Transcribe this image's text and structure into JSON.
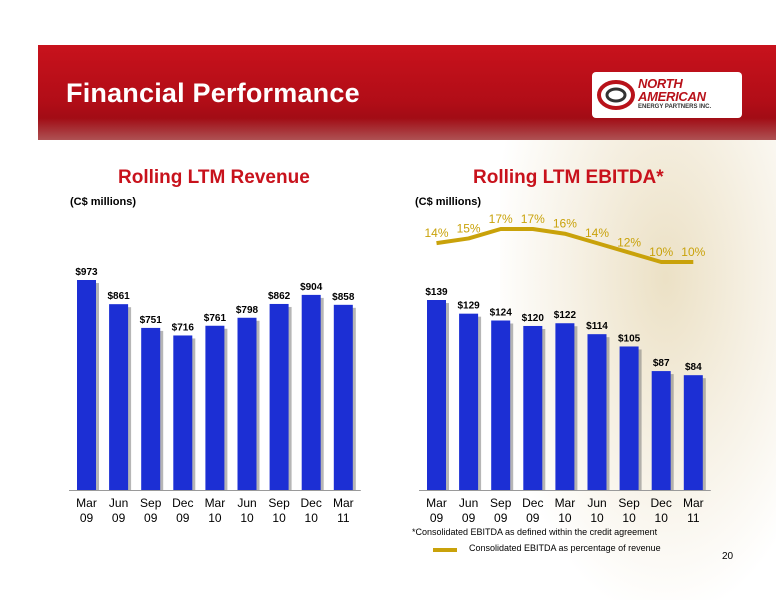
{
  "header": {
    "title": "Financial Performance",
    "logo": {
      "line1": "NORTH",
      "line2": "AMERICAN",
      "line3": "ENERGY PARTNERS INC."
    }
  },
  "colors": {
    "header_red": "#c8121c",
    "bar_blue": "#1c2fd4",
    "line_gold": "#c9a20a"
  },
  "chart_data": [
    {
      "type": "bar",
      "title": "Rolling LTM Revenue",
      "ylabel": "(C$ millions)",
      "categories": [
        "Mar\n09",
        "Jun\n09",
        "Sep\n09",
        "Dec\n09",
        "Mar\n10",
        "Jun\n10",
        "Sep\n10",
        "Dec\n10",
        "Mar\n11"
      ],
      "values": [
        973,
        861,
        751,
        716,
        761,
        798,
        862,
        904,
        858
      ],
      "value_labels": [
        "$973",
        "$861",
        "$751",
        "$716",
        "$761",
        "$798",
        "$862",
        "$904",
        "$858"
      ],
      "ylim": [
        0,
        1000
      ],
      "grid": false
    },
    {
      "type": "bar",
      "title": "Rolling LTM EBITDA*",
      "ylabel": "(C$ millions)",
      "categories": [
        "Mar\n09",
        "Jun\n09",
        "Sep\n09",
        "Dec\n09",
        "Mar\n10",
        "Jun\n10",
        "Sep\n10",
        "Dec\n10",
        "Mar\n11"
      ],
      "values": [
        139,
        129,
        124,
        120,
        122,
        114,
        105,
        87,
        84
      ],
      "value_labels": [
        "$139",
        "$129",
        "$124",
        "$120",
        "$122",
        "$114",
        "$105",
        "$87",
        "$84"
      ],
      "ylim": [
        0,
        160
      ],
      "grid": false,
      "line_series": {
        "name": "Consolidated EBITDA as percentage of revenue",
        "values": [
          14,
          15,
          17,
          17,
          16,
          14,
          12,
          10,
          10
        ],
        "labels": [
          "14%",
          "15%",
          "17%",
          "17%",
          "16%",
          "14%",
          "12%",
          "10%",
          "10%"
        ]
      },
      "footnote": "*Consolidated EBITDA as defined within the credit agreement",
      "legend": "Consolidated EBITDA as percentage of revenue"
    }
  ],
  "page_number": "20"
}
